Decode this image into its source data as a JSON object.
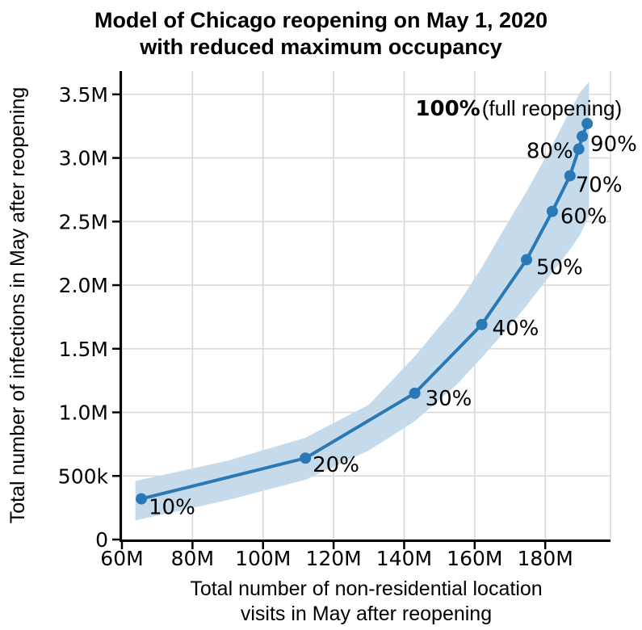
{
  "header": {
    "title_line1": "Model of Chicago reopening on May 1, 2020",
    "title_line2": "with reduced maximum occupancy"
  },
  "chart_data": {
    "type": "line",
    "title": "Model of Chicago reopening on May 1, 2020 with reduced maximum occupancy",
    "xlabel_lines": [
      "Total number of non-residential location",
      "visits in May after reopening"
    ],
    "ylabel": "Total number of infections in May after reopening",
    "x_units": "millions of visits",
    "y_units": "millions of infections",
    "xlim": [
      60,
      198.5
    ],
    "ylim": [
      0,
      3.683
    ],
    "grid": true,
    "legend": "none",
    "x_ticks": [
      {
        "v": 60,
        "label": "60M"
      },
      {
        "v": 80,
        "label": "80M"
      },
      {
        "v": 100,
        "label": "100M"
      },
      {
        "v": 120,
        "label": "120M"
      },
      {
        "v": 140,
        "label": "140M"
      },
      {
        "v": 160,
        "label": "160M"
      },
      {
        "v": 180,
        "label": "180M"
      }
    ],
    "y_ticks": [
      {
        "v": 0,
        "label": "0"
      },
      {
        "v": 0.5,
        "label": "500k"
      },
      {
        "v": 1.0,
        "label": "1.0M"
      },
      {
        "v": 1.5,
        "label": "1.5M"
      },
      {
        "v": 2.0,
        "label": "2.0M"
      },
      {
        "v": 2.5,
        "label": "2.5M"
      },
      {
        "v": 3.0,
        "label": "3.0M"
      },
      {
        "v": 3.5,
        "label": "3.5M"
      }
    ],
    "series": [
      {
        "name": "Modeled infections at reduced maximum occupancy",
        "points": [
          {
            "label": "10%",
            "x": 65.5,
            "y": 0.32
          },
          {
            "label": "20%",
            "x": 112.0,
            "y": 0.64
          },
          {
            "label": "30%",
            "x": 143.0,
            "y": 1.15
          },
          {
            "label": "40%",
            "x": 162.0,
            "y": 1.69
          },
          {
            "label": "50%",
            "x": 174.7,
            "y": 2.2
          },
          {
            "label": "60%",
            "x": 182.0,
            "y": 2.58
          },
          {
            "label": "70%",
            "x": 187.0,
            "y": 2.86
          },
          {
            "label": "80%",
            "x": 189.5,
            "y": 3.07
          },
          {
            "label": "90%",
            "x": 190.5,
            "y": 3.17
          },
          {
            "label": "100%",
            "x": 191.9,
            "y": 3.27,
            "suffix": "(full reopening)"
          }
        ]
      }
    ],
    "band": {
      "x": [
        63.8,
        90.0,
        112.0,
        130.0,
        143.0,
        155.0,
        162.0,
        170.0,
        175.0,
        182.0,
        187.0,
        190.0,
        192.4
      ],
      "upper": [
        0.46,
        0.62,
        0.8,
        1.06,
        1.44,
        1.84,
        2.14,
        2.52,
        2.75,
        3.1,
        3.37,
        3.52,
        3.6
      ],
      "lower": [
        0.15,
        0.31,
        0.47,
        0.7,
        0.93,
        1.22,
        1.43,
        1.68,
        1.85,
        2.1,
        2.28,
        2.4,
        2.55
      ]
    },
    "colors": {
      "line": "#2a78b4",
      "marker": "#2a78b4",
      "band": "#c5dbec",
      "grid": "#d9d9d9",
      "axis": "#000000",
      "text": "#000000"
    }
  }
}
